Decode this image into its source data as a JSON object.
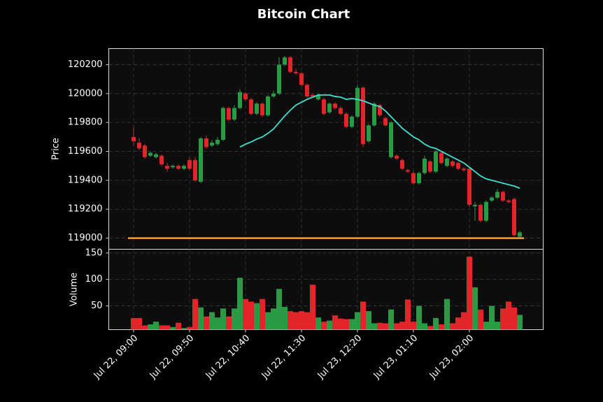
{
  "chart_data": {
    "type": "candlestick",
    "title": "Bitcoin Chart",
    "ylabel": "Price",
    "categories": [
      "Jul 22, 09:00",
      null,
      null,
      null,
      null,
      null,
      null,
      null,
      null,
      null,
      "Jul 22, 09:50",
      null,
      null,
      null,
      null,
      null,
      null,
      null,
      null,
      null,
      "Jul 22, 10:40",
      null,
      null,
      null,
      null,
      null,
      null,
      null,
      null,
      null,
      "Jul 22, 11:30",
      null,
      null,
      null,
      null,
      null,
      null,
      null,
      null,
      null,
      "Jul 23, 12:20",
      null,
      null,
      null,
      null,
      null,
      null,
      null,
      null,
      null,
      "Jul 23, 01:10",
      null,
      null,
      null,
      null,
      null,
      null,
      null,
      null,
      null,
      "Jul 23, 02:00",
      null,
      null,
      null,
      null,
      null,
      null,
      null,
      null,
      null
    ],
    "open": [
      119700,
      119660,
      119640,
      119570,
      119560,
      119570,
      119500,
      119490,
      119500,
      119480,
      119540,
      119540,
      119390,
      119690,
      119640,
      119650,
      119680,
      119900,
      119820,
      119900,
      120000,
      119960,
      119860,
      119930,
      119850,
      119980,
      120000,
      120200,
      120250,
      120150,
      120140,
      120060,
      119990,
      119960,
      119960,
      119870,
      119930,
      119900,
      119860,
      119770,
      119840,
      120040,
      119670,
      119780,
      119920,
      119830,
      119560,
      119570,
      119540,
      119470,
      119450,
      119380,
      119450,
      119530,
      119460,
      119590,
      119500,
      119530,
      119520,
      119480,
      119480,
      119220,
      119230,
      119120,
      119260,
      119280,
      119320,
      119260,
      119270,
      119010
    ],
    "high": [
      119770,
      119690,
      119650,
      119600,
      119590,
      119580,
      119520,
      119510,
      119510,
      119510,
      119560,
      119560,
      119700,
      119710,
      119680,
      119700,
      119910,
      119910,
      119920,
      120030,
      120010,
      119970,
      119940,
      119940,
      119990,
      120020,
      120250,
      120260,
      120260,
      120170,
      120150,
      120070,
      120000,
      120000,
      119970,
      119940,
      119940,
      119910,
      119870,
      119850,
      120060,
      120050,
      119790,
      119940,
      119930,
      119840,
      119810,
      119580,
      119550,
      119480,
      119460,
      119460,
      119570,
      119540,
      119610,
      119600,
      119560,
      119540,
      119530,
      119490,
      119490,
      119250,
      119240,
      119260,
      119290,
      119340,
      119330,
      119270,
      119280,
      119050
    ],
    "low": [
      119640,
      119610,
      119550,
      119560,
      119550,
      119500,
      119460,
      119480,
      119470,
      119470,
      119470,
      119390,
      119380,
      119620,
      119630,
      119640,
      119670,
      119810,
      119810,
      119890,
      119950,
      119850,
      119850,
      119840,
      119840,
      119970,
      119990,
      120190,
      120140,
      120130,
      120050,
      119970,
      119970,
      119950,
      119850,
      119860,
      119890,
      119850,
      119760,
      119760,
      119830,
      119630,
      119660,
      119770,
      119840,
      119770,
      119550,
      119540,
      119470,
      119450,
      119370,
      119370,
      119440,
      119450,
      119450,
      119510,
      119490,
      119490,
      119470,
      119460,
      119220,
      119120,
      119110,
      119110,
      119250,
      119270,
      119250,
      119240,
      119010,
      119000
    ],
    "close": [
      119670,
      119620,
      119560,
      119590,
      119580,
      119510,
      119480,
      119500,
      119480,
      119500,
      119480,
      119400,
      119690,
      119630,
      119660,
      119680,
      119900,
      119820,
      119900,
      120010,
      119960,
      119860,
      119930,
      119850,
      119980,
      120000,
      120200,
      120250,
      120150,
      120140,
      120060,
      119980,
      119980,
      119990,
      119860,
      119930,
      119900,
      119860,
      119770,
      119840,
      120040,
      119650,
      119780,
      119930,
      119850,
      119780,
      119800,
      119550,
      119480,
      119460,
      119380,
      119450,
      119550,
      119460,
      119600,
      119520,
      119550,
      119500,
      119480,
      119470,
      119230,
      119230,
      119120,
      119250,
      119280,
      119320,
      119260,
      119250,
      119020,
      119040
    ],
    "up_color": "#2a9a45",
    "down_color": "#e0262a",
    "ylim": [
      118923,
      120311
    ],
    "yticks": [
      119000,
      119200,
      119400,
      119600,
      119800,
      120000,
      120200
    ],
    "grid": true,
    "moving_average": {
      "color": "#40e0d0",
      "values": [
        null,
        null,
        null,
        null,
        null,
        null,
        null,
        null,
        null,
        null,
        null,
        null,
        null,
        null,
        null,
        null,
        null,
        null,
        null,
        119630,
        119650,
        119665,
        119685,
        119700,
        119725,
        119755,
        119800,
        119845,
        119885,
        119920,
        119940,
        119960,
        119975,
        119990,
        119990,
        119990,
        119980,
        119975,
        119960,
        119965,
        119960,
        119950,
        119935,
        119920,
        119910,
        119880,
        119840,
        119800,
        119760,
        119730,
        119700,
        119680,
        119650,
        119630,
        119620,
        119600,
        119580,
        119560,
        119540,
        119520,
        119490,
        119460,
        119430,
        119410,
        119400,
        119390,
        119380,
        119370,
        119360,
        119345
      ]
    },
    "hline": {
      "value": 119000,
      "color": "#f5a030"
    },
    "volume": {
      "ylabel": "Volume",
      "ylim": [
        5,
        157
      ],
      "yticks": [
        50,
        100,
        150
      ],
      "values": [
        27,
        27,
        13,
        15,
        20,
        13,
        13,
        10,
        18,
        8,
        10,
        63,
        47,
        30,
        38,
        28,
        45,
        30,
        45,
        103,
        63,
        58,
        55,
        63,
        38,
        45,
        82,
        48,
        40,
        38,
        40,
        38,
        90,
        28,
        20,
        22,
        32,
        26,
        25,
        25,
        38,
        58,
        40,
        17,
        18,
        17,
        43,
        17,
        20,
        62,
        20,
        50,
        17,
        12,
        27,
        15,
        63,
        17,
        28,
        38,
        143,
        85,
        43,
        20,
        50,
        20,
        45,
        58,
        47,
        33
      ]
    }
  }
}
